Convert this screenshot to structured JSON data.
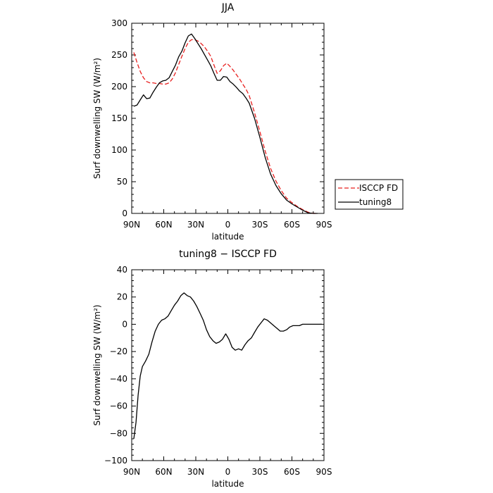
{
  "chart_data": [
    {
      "type": "line",
      "title": "JJA",
      "xlabel": "latitude",
      "ylabel": "Surf downwelling SW (W/m²)",
      "xlim": [
        90,
        -90
      ],
      "ylim": [
        0,
        300
      ],
      "x_ticks": [
        90,
        60,
        30,
        0,
        -30,
        -60,
        -90
      ],
      "x_tick_labels": [
        "90N",
        "60N",
        "30N",
        "0",
        "30S",
        "60S",
        "90S"
      ],
      "y_ticks": [
        0,
        50,
        100,
        150,
        200,
        250,
        300
      ],
      "y_tick_labels": [
        "0",
        "50",
        "100",
        "150",
        "200",
        "250",
        "300"
      ],
      "legend_position": "right",
      "legend": [
        "ISCCP FD",
        "tuning8"
      ],
      "series": [
        {
          "name": "ISCCP FD",
          "color": "#e8201f",
          "dash": "dashed",
          "x": [
            88,
            85,
            82,
            79,
            76,
            73,
            70,
            67,
            64,
            61,
            58,
            55,
            52,
            49,
            46,
            43,
            40,
            37,
            34,
            31,
            28,
            25,
            22,
            19,
            16,
            13,
            10,
            7,
            4,
            1,
            -2,
            -5,
            -8,
            -11,
            -14,
            -17,
            -20,
            -25,
            -30,
            -35,
            -40,
            -45,
            -50,
            -55,
            -60,
            -65,
            -70,
            -75,
            -80,
            -84
          ],
          "y": [
            254,
            238,
            224,
            214,
            208,
            206,
            206,
            205,
            205,
            204,
            204,
            206,
            212,
            222,
            235,
            248,
            260,
            270,
            274,
            274,
            272,
            268,
            263,
            256,
            248,
            234,
            221,
            225,
            233,
            237,
            232,
            226,
            219,
            212,
            204,
            196,
            186,
            159,
            129,
            98,
            71,
            51,
            36,
            24,
            17,
            11,
            6,
            2,
            0,
            0
          ]
        },
        {
          "name": "tuning8",
          "color": "#000000",
          "dash": "solid",
          "x": [
            88,
            85,
            82,
            79,
            76,
            73,
            70,
            67,
            64,
            61,
            58,
            55,
            52,
            49,
            46,
            43,
            40,
            37,
            34,
            31,
            28,
            25,
            22,
            19,
            16,
            13,
            10,
            7,
            4,
            1,
            -2,
            -5,
            -8,
            -11,
            -14,
            -17,
            -20,
            -25,
            -30,
            -35,
            -40,
            -45,
            -50,
            -55,
            -60,
            -65,
            -70,
            -75,
            -80,
            -84
          ],
          "y": [
            169,
            171,
            179,
            187,
            181,
            182,
            191,
            199,
            206,
            209,
            210,
            214,
            224,
            234,
            247,
            256,
            269,
            280,
            283,
            276,
            268,
            260,
            251,
            242,
            233,
            221,
            210,
            210,
            216,
            215,
            208,
            204,
            199,
            193,
            189,
            182,
            174,
            150,
            120,
            88,
            62,
            44,
            31,
            21,
            15,
            10,
            5,
            1,
            0,
            0
          ]
        }
      ]
    },
    {
      "type": "line",
      "title": "tuning8 − ISCCP FD",
      "xlabel": "latitude",
      "ylabel": "Surf downwelling SW (W/m²)",
      "xlim": [
        90,
        -90
      ],
      "ylim": [
        -100,
        40
      ],
      "x_ticks": [
        90,
        60,
        30,
        0,
        -30,
        -60,
        -90
      ],
      "x_tick_labels": [
        "90N",
        "60N",
        "30N",
        "0",
        "30S",
        "60S",
        "90S"
      ],
      "y_ticks": [
        -100,
        -80,
        -60,
        -40,
        -20,
        0,
        20,
        40
      ],
      "y_tick_labels": [
        "−100",
        "−80",
        "−60",
        "−40",
        "−20",
        "0",
        "20",
        "40"
      ],
      "series": [
        {
          "color": "#000000",
          "dash": "solid",
          "x": [
            88,
            86,
            84,
            82,
            80,
            77,
            74,
            71,
            68,
            65,
            62,
            59,
            56,
            53,
            50,
            47,
            44,
            41,
            38,
            35,
            32,
            29,
            26,
            23,
            20,
            17,
            14,
            11,
            8,
            5,
            2,
            -1,
            -4,
            -7,
            -10,
            -13,
            -16,
            -19,
            -22,
            -25,
            -28,
            -31,
            -34,
            -37,
            -40,
            -43,
            -46,
            -49,
            -52,
            -55,
            -58,
            -61,
            -64,
            -67,
            -70,
            -73,
            -76,
            -79,
            -82,
            -85,
            -88
          ],
          "y": [
            -84,
            -72,
            -52,
            -38,
            -31,
            -27,
            -22,
            -13,
            -5,
            0,
            3,
            4,
            6,
            10,
            14,
            17,
            21,
            23,
            21,
            20,
            17,
            13,
            8,
            3,
            -4,
            -9,
            -12,
            -14,
            -13,
            -11,
            -7,
            -11,
            -17,
            -19,
            -18,
            -19,
            -15,
            -12,
            -10,
            -6,
            -2,
            1,
            4,
            3,
            1,
            -1,
            -3,
            -5,
            -5,
            -4,
            -2,
            -1,
            -1,
            -1,
            0,
            0,
            0,
            0,
            0,
            0,
            0
          ]
        }
      ]
    }
  ]
}
